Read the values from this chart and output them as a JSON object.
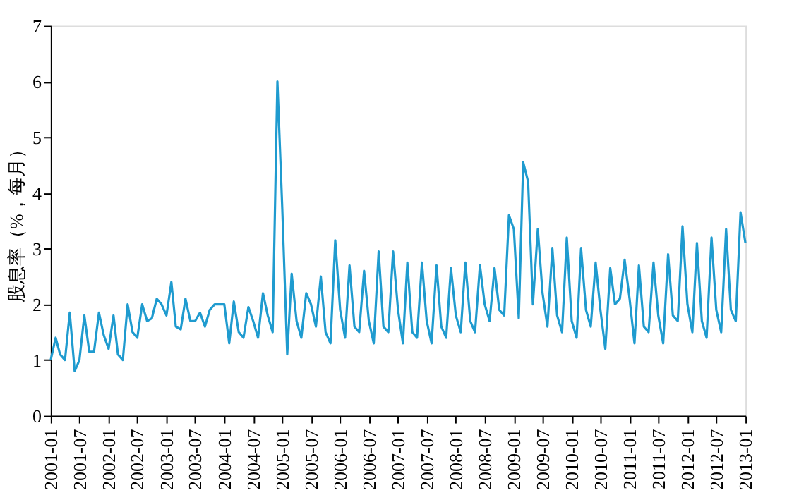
{
  "chart_data": {
    "type": "line",
    "ylabel": "股息率（%，每月）",
    "x": [
      "2001-01",
      "2001-02",
      "2001-03",
      "2001-04",
      "2001-05",
      "2001-06",
      "2001-07",
      "2001-08",
      "2001-09",
      "2001-10",
      "2001-11",
      "2001-12",
      "2002-01",
      "2002-02",
      "2002-03",
      "2002-04",
      "2002-05",
      "2002-06",
      "2002-07",
      "2002-08",
      "2002-09",
      "2002-10",
      "2002-11",
      "2002-12",
      "2003-01",
      "2003-02",
      "2003-03",
      "2003-04",
      "2003-05",
      "2003-06",
      "2003-07",
      "2003-08",
      "2003-09",
      "2003-10",
      "2003-11",
      "2003-12",
      "2004-01",
      "2004-02",
      "2004-03",
      "2004-04",
      "2004-05",
      "2004-06",
      "2004-07",
      "2004-08",
      "2004-09",
      "2004-10",
      "2004-11",
      "2004-12",
      "2005-01",
      "2005-02",
      "2005-03",
      "2005-04",
      "2005-05",
      "2005-06",
      "2005-07",
      "2005-08",
      "2005-09",
      "2005-10",
      "2005-11",
      "2005-12",
      "2006-01",
      "2006-02",
      "2006-03",
      "2006-04",
      "2006-05",
      "2006-06",
      "2006-07",
      "2006-08",
      "2006-09",
      "2006-10",
      "2006-11",
      "2006-12",
      "2007-01",
      "2007-02",
      "2007-03",
      "2007-04",
      "2007-05",
      "2007-06",
      "2007-07",
      "2007-08",
      "2007-09",
      "2007-10",
      "2007-11",
      "2007-12",
      "2008-01",
      "2008-02",
      "2008-03",
      "2008-04",
      "2008-05",
      "2008-06",
      "2008-07",
      "2008-08",
      "2008-09",
      "2008-10",
      "2008-11",
      "2008-12",
      "2009-01",
      "2009-02",
      "2009-03",
      "2009-04",
      "2009-05",
      "2009-06",
      "2009-07",
      "2009-08",
      "2009-09",
      "2009-10",
      "2009-11",
      "2009-12",
      "2010-01",
      "2010-02",
      "2010-03",
      "2010-04",
      "2010-05",
      "2010-06",
      "2010-07",
      "2010-08",
      "2010-09",
      "2010-10",
      "2010-11",
      "2010-12",
      "2011-01",
      "2011-02",
      "2011-03",
      "2011-04",
      "2011-05",
      "2011-06",
      "2011-07",
      "2011-08",
      "2011-09",
      "2011-10",
      "2011-11",
      "2011-12",
      "2012-01",
      "2012-02",
      "2012-03",
      "2012-04",
      "2012-05",
      "2012-06",
      "2012-07",
      "2012-08",
      "2012-09",
      "2012-10",
      "2012-11",
      "2012-12",
      "2013-01"
    ],
    "series": [
      {
        "color": "#1f9bcf",
        "values": [
          1.0,
          1.4,
          1.1,
          1.0,
          1.85,
          0.8,
          1.0,
          1.8,
          1.15,
          1.15,
          1.85,
          1.45,
          1.2,
          1.8,
          1.1,
          1.0,
          2.0,
          1.5,
          1.4,
          2.0,
          1.7,
          1.75,
          2.1,
          2.0,
          1.8,
          2.4,
          1.6,
          1.55,
          2.1,
          1.7,
          1.7,
          1.85,
          1.6,
          1.9,
          2.0,
          2.0,
          2.0,
          1.3,
          2.05,
          1.5,
          1.4,
          1.95,
          1.7,
          1.4,
          2.2,
          1.8,
          1.5,
          6.0,
          3.7,
          1.1,
          2.55,
          1.7,
          1.4,
          2.2,
          2.0,
          1.6,
          2.5,
          1.5,
          1.3,
          3.15,
          1.9,
          1.4,
          2.7,
          1.6,
          1.5,
          2.6,
          1.7,
          1.3,
          2.95,
          1.6,
          1.5,
          2.95,
          1.9,
          1.3,
          2.75,
          1.5,
          1.4,
          2.75,
          1.7,
          1.3,
          2.7,
          1.6,
          1.4,
          2.65,
          1.8,
          1.5,
          2.75,
          1.7,
          1.5,
          2.7,
          2.0,
          1.7,
          2.65,
          1.9,
          1.8,
          3.6,
          3.35,
          1.75,
          4.55,
          4.2,
          2.0,
          3.35,
          2.2,
          1.6,
          3.0,
          1.8,
          1.5,
          3.2,
          1.7,
          1.4,
          3.0,
          1.9,
          1.6,
          2.75,
          1.9,
          1.2,
          2.65,
          2.0,
          2.1,
          2.8,
          2.1,
          1.3,
          2.7,
          1.6,
          1.5,
          2.75,
          1.8,
          1.3,
          2.9,
          1.8,
          1.7,
          3.4,
          2.0,
          1.5,
          3.1,
          1.7,
          1.4,
          3.2,
          1.9,
          1.5,
          3.35,
          1.9,
          1.7,
          3.65,
          3.1
        ]
      }
    ],
    "xlim": [
      "2001-01",
      "2013-01"
    ],
    "xticks": [
      "2001-01",
      "2001-07",
      "2002-01",
      "2002-07",
      "2003-01",
      "2003-07",
      "2004-01",
      "2004-07",
      "2005-01",
      "2005-07",
      "2006-01",
      "2006-07",
      "2007-01",
      "2007-07",
      "2008-01",
      "2008-07",
      "2009-01",
      "2009-07",
      "2010-01",
      "2010-07",
      "2011-01",
      "2011-07",
      "2012-01",
      "2012-07",
      "2013-01"
    ],
    "ylim": [
      0,
      7
    ],
    "yticks": [
      0,
      1,
      2,
      3,
      4,
      5,
      6,
      7
    ],
    "grid": false,
    "legend": false,
    "marker": "none",
    "line_style": "solid"
  }
}
